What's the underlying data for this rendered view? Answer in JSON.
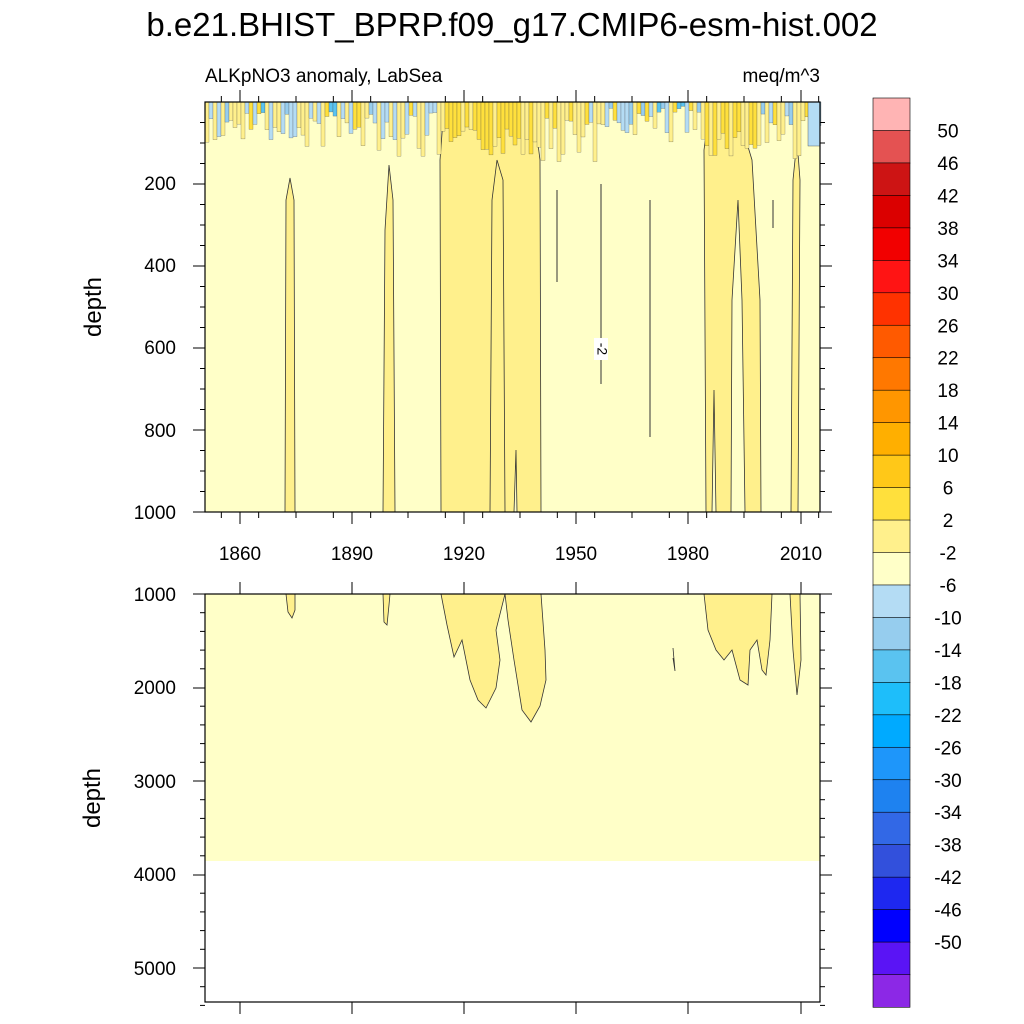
{
  "figure": {
    "title": "b.e21.BHIST_BPRP.f09_g17.CMIP6-esm-hist.002",
    "subtitle_left": "ALKpNO3 anomaly, LabSea",
    "subtitle_right": "meq/m^3"
  },
  "chart_data": [
    {
      "type": "heatmap",
      "panel": "upper",
      "description": "Time-depth filled contour plot (0-1000 m)",
      "xlabel": "",
      "ylabel": "depth",
      "xlim": [
        1850,
        2015
      ],
      "ylim": [
        1000,
        0
      ],
      "x_tick_labels": [
        "1860",
        "1890",
        "1920",
        "1950",
        "1980",
        "2010"
      ],
      "y_tick_labels": [
        "200",
        "400",
        "600",
        "800",
        "1000"
      ],
      "background_level": "-2 to 2",
      "contour_label": "-2",
      "features": [
        {
          "x_range": [
            1873,
            1875
          ],
          "depth_range": [
            190,
            1000
          ],
          "level": "2 to 6"
        },
        {
          "x_range": [
            1898,
            1900
          ],
          "depth_range": [
            160,
            1000
          ],
          "level": "2 to 6"
        },
        {
          "x_range": [
            1913,
            1941
          ],
          "depth_range": [
            0,
            1000
          ],
          "level": "2 to 6"
        },
        {
          "x_range": [
            1983,
            1996
          ],
          "depth_range": [
            0,
            1000
          ],
          "level": "2 to 6"
        },
        {
          "x_range": [
            2008,
            2010
          ],
          "depth_range": [
            0,
            1000
          ],
          "level": "2 to 6"
        },
        {
          "x_range": [
            1850,
            2015
          ],
          "depth_range": [
            0,
            120
          ],
          "level": "mixed -14 to 10"
        }
      ]
    },
    {
      "type": "heatmap",
      "panel": "lower",
      "description": "Time-depth filled contour plot (1000-5500 m)",
      "xlabel": "",
      "ylabel": "depth",
      "xlim": [
        1850,
        2015
      ],
      "ylim": [
        5500,
        1000
      ],
      "y_tick_labels": [
        "1000",
        "2000",
        "3000",
        "4000",
        "5000"
      ],
      "data_bottom_depth": 3850,
      "background_level": "-2 to 2",
      "features": [
        {
          "x_range": [
            1913,
            1940
          ],
          "depth_range": [
            1000,
            2350
          ],
          "level": "2 to 6"
        },
        {
          "x_range": [
            1984,
            2010
          ],
          "depth_range": [
            1000,
            2050
          ],
          "level": "2 to 6"
        }
      ]
    }
  ],
  "colorbar": {
    "labels": [
      "50",
      "46",
      "42",
      "38",
      "34",
      "30",
      "26",
      "22",
      "18",
      "14",
      "10",
      "6",
      "2",
      "-2",
      "-6",
      "-10",
      "-14",
      "-18",
      "-22",
      "-26",
      "-30",
      "-34",
      "-38",
      "-42",
      "-46",
      "-50"
    ],
    "colors": [
      "#FFB4B4",
      "#E45252",
      "#CD1414",
      "#DB0000",
      "#F20000",
      "#FF1414",
      "#FF3200",
      "#FF5A00",
      "#FF7800",
      "#FF9600",
      "#FFAF00",
      "#FFC818",
      "#FFE03C",
      "#FFF08C",
      "#FFFFC8",
      "#B4DCF4",
      "#96CDEE",
      "#5AC3F0",
      "#1EBEFA",
      "#00AAFF",
      "#1E96FA",
      "#1E82F0",
      "#3268E6",
      "#3250DC",
      "#1E28F0",
      "#0000FF",
      "#5A14F5",
      "#8C28E6"
    ]
  },
  "colors": {
    "lvl_neg2_2": "#FFFFC8",
    "lvl_2_6": "#FFF08C",
    "lvl_6_10": "#FFE03C",
    "lvl_neg6_neg2": "#B4DCF4",
    "lvl_neg10_neg6": "#96CDEE",
    "lvl_neg14_neg10": "#5AC3F0"
  }
}
